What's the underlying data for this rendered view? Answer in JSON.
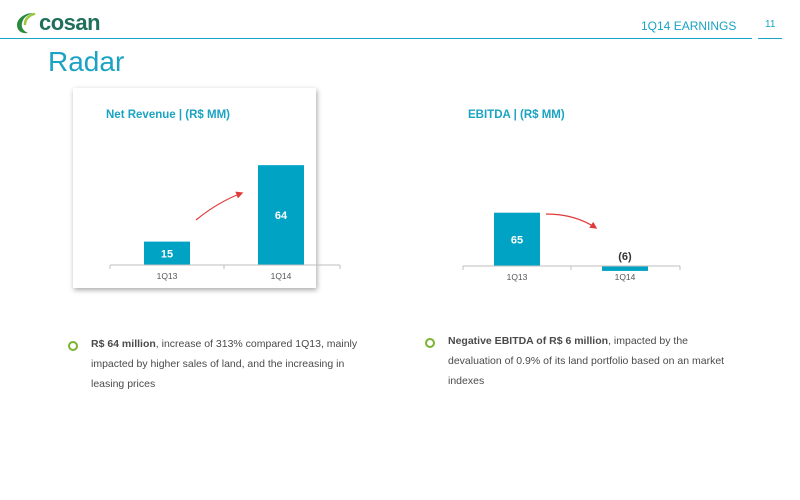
{
  "header": {
    "logo_text": "cosan",
    "section_label": "1Q14 EARNINGS",
    "page_number": "11"
  },
  "page_title": "Radar",
  "chart_data": [
    {
      "type": "bar",
      "title": "Net Revenue | (R$ MM)",
      "categories": [
        "1Q13",
        "1Q14"
      ],
      "values": [
        15,
        64
      ],
      "value_labels": [
        "15",
        "64"
      ],
      "trend_arrow": "up",
      "color": "#00a3c4"
    },
    {
      "type": "bar",
      "title": "EBITDA | (R$ MM)",
      "categories": [
        "1Q13",
        "1Q14"
      ],
      "values": [
        65,
        -6
      ],
      "value_labels": [
        "65",
        "(6)"
      ],
      "trend_arrow": "down",
      "color": "#00a3c4"
    }
  ],
  "notes": [
    {
      "bold": "R$ 64 million",
      "text": ", increase of 313% compared 1Q13, mainly impacted by higher sales of land, and the increasing in leasing prices"
    },
    {
      "bold": "Negative EBITDA of R$ 6 million",
      "text": ", impacted by the devaluation of 0.9% of its land portfolio based on an market indexes"
    }
  ],
  "colors": {
    "accent": "#1aa3c2",
    "bar": "#00a3c4",
    "arrow": "#e03a3a",
    "bullet": "#7ab52d",
    "logo": "#1f6f5a"
  }
}
